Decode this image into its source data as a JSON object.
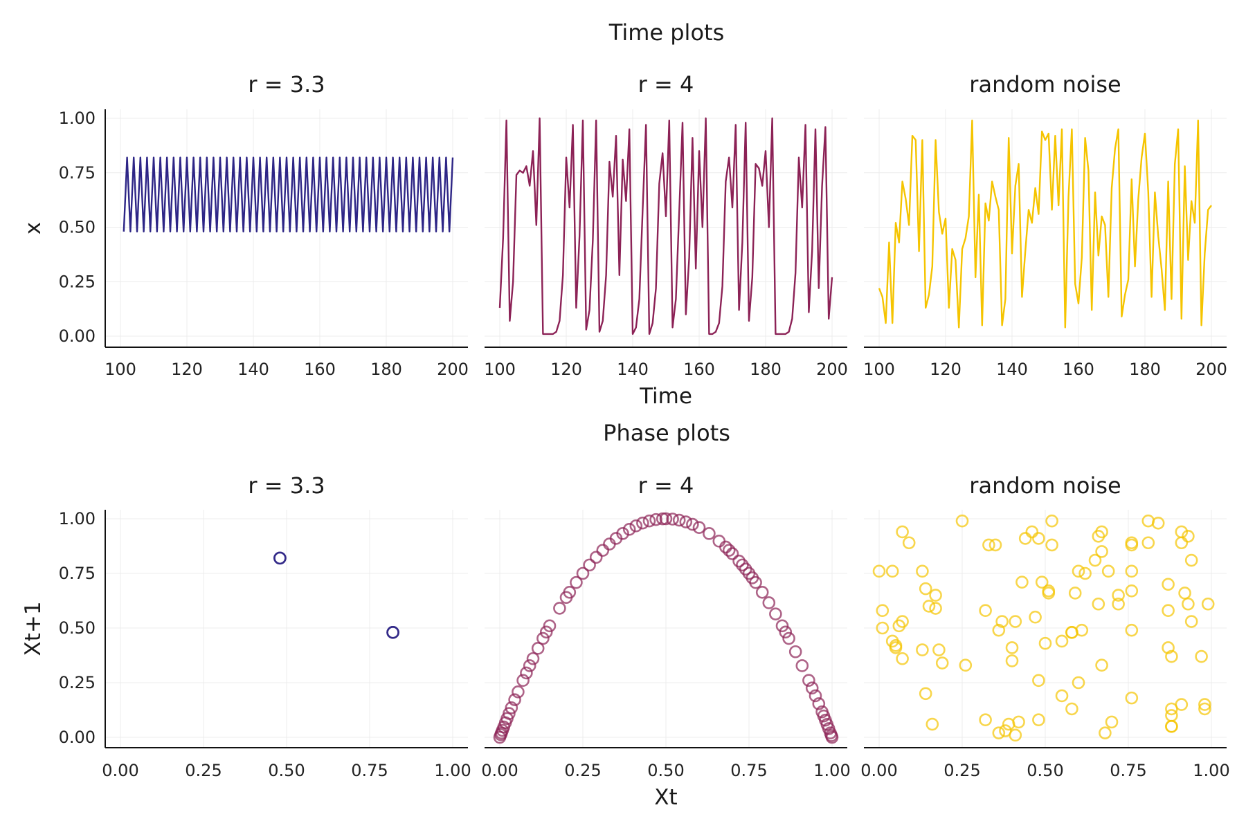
{
  "figure": {
    "time_section_title": "Time plots",
    "phase_section_title": "Phase plots",
    "colors": {
      "r33": "#2d2586",
      "r4": "#8c2256",
      "noise": "#f5c400"
    }
  },
  "chart_data": [
    {
      "type": "line",
      "title": "r = 3.3",
      "xlabel": "",
      "ylabel": "x",
      "xlim": [
        100,
        200
      ],
      "ylim": [
        0,
        1
      ],
      "xticks": [
        "100",
        "120",
        "140",
        "160",
        "180",
        "200"
      ],
      "yticks": [
        "0.00",
        "0.25",
        "0.50",
        "0.75",
        "1.00"
      ],
      "grid": true,
      "color": "#2d2586",
      "series": [
        {
          "x_start": 101,
          "x_step": 1,
          "values": [
            0.48,
            0.82,
            0.48,
            0.82,
            0.48,
            0.82,
            0.48,
            0.82,
            0.48,
            0.82,
            0.48,
            0.82,
            0.48,
            0.82,
            0.48,
            0.82,
            0.48,
            0.82,
            0.48,
            0.82,
            0.48,
            0.82,
            0.48,
            0.82,
            0.48,
            0.82,
            0.48,
            0.82,
            0.48,
            0.82,
            0.48,
            0.82,
            0.48,
            0.82,
            0.48,
            0.82,
            0.48,
            0.82,
            0.48,
            0.82,
            0.48,
            0.82,
            0.48,
            0.82,
            0.48,
            0.82,
            0.48,
            0.82,
            0.48,
            0.82,
            0.48,
            0.82,
            0.48,
            0.82,
            0.48,
            0.82,
            0.48,
            0.82,
            0.48,
            0.82,
            0.48,
            0.82,
            0.48,
            0.82,
            0.48,
            0.82,
            0.48,
            0.82,
            0.48,
            0.82,
            0.48,
            0.82,
            0.48,
            0.82,
            0.48,
            0.82,
            0.48,
            0.82,
            0.48,
            0.82,
            0.48,
            0.82,
            0.48,
            0.82,
            0.48,
            0.82,
            0.48,
            0.82,
            0.48,
            0.82,
            0.48,
            0.82,
            0.48,
            0.82,
            0.48,
            0.82,
            0.48,
            0.82,
            0.48,
            0.82
          ]
        }
      ]
    },
    {
      "type": "line",
      "title": "r = 4",
      "xlabel": "Time",
      "ylabel": "",
      "xlim": [
        100,
        200
      ],
      "ylim": [
        0,
        1
      ],
      "xticks": [
        "100",
        "120",
        "140",
        "160",
        "180",
        "200"
      ],
      "yticks": [],
      "grid": true,
      "color": "#8c2256",
      "series": [
        {
          "x_start": 100,
          "x_step": 1,
          "values": [
            0.13,
            0.45,
            0.99,
            0.07,
            0.25,
            0.74,
            0.76,
            0.75,
            0.78,
            0.69,
            0.85,
            0.51,
            1.0,
            0.01,
            0.01,
            0.01,
            0.01,
            0.02,
            0.07,
            0.28,
            0.82,
            0.59,
            0.97,
            0.13,
            0.46,
            0.99,
            0.03,
            0.12,
            0.44,
            0.99,
            0.02,
            0.07,
            0.28,
            0.8,
            0.64,
            0.92,
            0.28,
            0.81,
            0.62,
            0.95,
            0.01,
            0.04,
            0.17,
            0.58,
            0.97,
            0.01,
            0.06,
            0.22,
            0.7,
            0.84,
            0.55,
            0.99,
            0.04,
            0.17,
            0.57,
            0.98,
            0.1,
            0.36,
            0.91,
            0.31,
            0.85,
            0.5,
            1.0,
            0.01,
            0.01,
            0.02,
            0.06,
            0.23,
            0.71,
            0.82,
            0.59,
            0.97,
            0.12,
            0.43,
            0.98,
            0.07,
            0.27,
            0.79,
            0.77,
            0.69,
            0.85,
            0.5,
            1.0,
            0.01,
            0.01,
            0.01,
            0.01,
            0.02,
            0.08,
            0.29,
            0.82,
            0.59,
            0.97,
            0.11,
            0.39,
            0.95,
            0.22,
            0.69,
            0.96,
            0.08,
            0.27
          ]
        }
      ]
    },
    {
      "type": "line",
      "title": "random noise",
      "xlabel": "",
      "ylabel": "",
      "xlim": [
        100,
        200
      ],
      "ylim": [
        0,
        1
      ],
      "xticks": [
        "100",
        "120",
        "140",
        "160",
        "180",
        "200"
      ],
      "yticks": [],
      "grid": true,
      "color": "#f5c400",
      "series": [
        {
          "x_start": 100,
          "x_step": 1,
          "values": [
            0.22,
            0.18,
            0.06,
            0.43,
            0.06,
            0.52,
            0.43,
            0.71,
            0.63,
            0.51,
            0.92,
            0.9,
            0.39,
            0.9,
            0.13,
            0.19,
            0.32,
            0.9,
            0.57,
            0.47,
            0.54,
            0.13,
            0.4,
            0.35,
            0.04,
            0.4,
            0.45,
            0.55,
            0.99,
            0.27,
            0.65,
            0.05,
            0.61,
            0.53,
            0.71,
            0.64,
            0.58,
            0.05,
            0.17,
            0.91,
            0.38,
            0.69,
            0.79,
            0.18,
            0.39,
            0.58,
            0.52,
            0.68,
            0.56,
            0.94,
            0.9,
            0.93,
            0.58,
            0.92,
            0.6,
            0.95,
            0.04,
            0.64,
            0.95,
            0.24,
            0.15,
            0.36,
            0.91,
            0.76,
            0.12,
            0.66,
            0.37,
            0.55,
            0.51,
            0.18,
            0.68,
            0.86,
            0.95,
            0.09,
            0.19,
            0.26,
            0.72,
            0.32,
            0.63,
            0.82,
            0.93,
            0.66,
            0.18,
            0.66,
            0.46,
            0.31,
            0.12,
            0.71,
            0.17,
            0.79,
            0.95,
            0.08,
            0.78,
            0.35,
            0.62,
            0.52,
            0.99,
            0.05,
            0.38,
            0.58,
            0.6
          ]
        }
      ]
    },
    {
      "type": "scatter",
      "title": "r = 3.3",
      "xlabel": "",
      "ylabel": "Xt+1",
      "xlim": [
        0,
        1
      ],
      "ylim": [
        0,
        1
      ],
      "xticks": [
        "0.00",
        "0.25",
        "0.50",
        "0.75",
        "1.00"
      ],
      "yticks": [
        "0.00",
        "0.25",
        "0.50",
        "0.75",
        "1.00"
      ],
      "grid": true,
      "color": "#2d2586",
      "points": [
        [
          0.48,
          0.82
        ],
        [
          0.48,
          0.82
        ],
        [
          0.48,
          0.82
        ],
        [
          0.82,
          0.48
        ],
        [
          0.82,
          0.48
        ],
        [
          0.82,
          0.48
        ]
      ]
    },
    {
      "type": "scatter",
      "title": "r = 4",
      "xlabel": "Xt",
      "ylabel": "",
      "xlim": [
        0,
        1
      ],
      "ylim": [
        0,
        1
      ],
      "xticks": [
        "0.00",
        "0.25",
        "0.50",
        "0.75",
        "1.00"
      ],
      "yticks": [],
      "grid": true,
      "color": "#8c2256",
      "x_values": [
        0.0,
        0.003,
        0.005,
        0.008,
        0.012,
        0.017,
        0.022,
        0.028,
        0.035,
        0.045,
        0.055,
        0.07,
        0.08,
        0.09,
        0.1,
        0.115,
        0.13,
        0.14,
        0.15,
        0.18,
        0.2,
        0.21,
        0.23,
        0.25,
        0.27,
        0.29,
        0.31,
        0.33,
        0.35,
        0.37,
        0.39,
        0.41,
        0.43,
        0.45,
        0.47,
        0.49,
        0.5,
        0.52,
        0.54,
        0.56,
        0.58,
        0.6,
        0.63,
        0.66,
        0.68,
        0.69,
        0.7,
        0.72,
        0.73,
        0.74,
        0.75,
        0.76,
        0.77,
        0.79,
        0.81,
        0.83,
        0.85,
        0.86,
        0.87,
        0.89,
        0.91,
        0.93,
        0.94,
        0.95,
        0.96,
        0.97,
        0.975,
        0.98,
        0.985,
        0.99,
        0.995,
        0.998,
        1.0
      ]
    },
    {
      "type": "scatter",
      "title": "random noise",
      "xlabel": "",
      "ylabel": "",
      "xlim": [
        0,
        1
      ],
      "ylim": [
        0,
        1
      ],
      "xticks": [
        "0.00",
        "0.25",
        "0.50",
        "0.75",
        "1.00"
      ],
      "yticks": [],
      "grid": true,
      "color": "#f5c400",
      "points": [
        [
          0.0,
          0.76
        ],
        [
          0.01,
          0.58
        ],
        [
          0.01,
          0.5
        ],
        [
          0.04,
          0.76
        ],
        [
          0.04,
          0.44
        ],
        [
          0.05,
          0.41
        ],
        [
          0.05,
          0.42
        ],
        [
          0.06,
          0.51
        ],
        [
          0.07,
          0.53
        ],
        [
          0.07,
          0.94
        ],
        [
          0.07,
          0.36
        ],
        [
          0.09,
          0.89
        ],
        [
          0.13,
          0.4
        ],
        [
          0.13,
          0.76
        ],
        [
          0.14,
          0.2
        ],
        [
          0.14,
          0.68
        ],
        [
          0.15,
          0.6
        ],
        [
          0.16,
          0.06
        ],
        [
          0.17,
          0.65
        ],
        [
          0.17,
          0.59
        ],
        [
          0.18,
          0.4
        ],
        [
          0.19,
          0.34
        ],
        [
          0.25,
          0.99
        ],
        [
          0.26,
          0.33
        ],
        [
          0.32,
          0.58
        ],
        [
          0.32,
          0.08
        ],
        [
          0.33,
          0.88
        ],
        [
          0.35,
          0.88
        ],
        [
          0.36,
          0.02
        ],
        [
          0.36,
          0.49
        ],
        [
          0.37,
          0.53
        ],
        [
          0.38,
          0.03
        ],
        [
          0.39,
          0.06
        ],
        [
          0.4,
          0.41
        ],
        [
          0.4,
          0.35
        ],
        [
          0.41,
          0.53
        ],
        [
          0.41,
          0.01
        ],
        [
          0.42,
          0.07
        ],
        [
          0.43,
          0.71
        ],
        [
          0.44,
          0.91
        ],
        [
          0.46,
          0.94
        ],
        [
          0.47,
          0.55
        ],
        [
          0.48,
          0.91
        ],
        [
          0.48,
          0.26
        ],
        [
          0.48,
          0.08
        ],
        [
          0.49,
          0.71
        ],
        [
          0.5,
          0.43
        ],
        [
          0.51,
          0.67
        ],
        [
          0.51,
          0.66
        ],
        [
          0.52,
          0.99
        ],
        [
          0.52,
          0.88
        ],
        [
          0.55,
          0.19
        ],
        [
          0.55,
          0.44
        ],
        [
          0.58,
          0.48
        ],
        [
          0.58,
          0.48
        ],
        [
          0.58,
          0.13
        ],
        [
          0.59,
          0.66
        ],
        [
          0.6,
          0.25
        ],
        [
          0.6,
          0.76
        ],
        [
          0.61,
          0.49
        ],
        [
          0.62,
          0.75
        ],
        [
          0.65,
          0.81
        ],
        [
          0.66,
          0.61
        ],
        [
          0.66,
          0.92
        ],
        [
          0.67,
          0.33
        ],
        [
          0.67,
          0.94
        ],
        [
          0.67,
          0.85
        ],
        [
          0.68,
          0.02
        ],
        [
          0.69,
          0.76
        ],
        [
          0.7,
          0.07
        ],
        [
          0.72,
          0.61
        ],
        [
          0.72,
          0.65
        ],
        [
          0.76,
          0.76
        ],
        [
          0.76,
          0.89
        ],
        [
          0.76,
          0.88
        ],
        [
          0.76,
          0.67
        ],
        [
          0.76,
          0.49
        ],
        [
          0.76,
          0.18
        ],
        [
          0.81,
          0.89
        ],
        [
          0.81,
          0.99
        ],
        [
          0.84,
          0.98
        ],
        [
          0.87,
          0.41
        ],
        [
          0.87,
          0.58
        ],
        [
          0.87,
          0.7
        ],
        [
          0.88,
          0.05
        ],
        [
          0.88,
          0.37
        ],
        [
          0.88,
          0.1
        ],
        [
          0.88,
          0.13
        ],
        [
          0.88,
          0.05
        ],
        [
          0.91,
          0.89
        ],
        [
          0.91,
          0.94
        ],
        [
          0.91,
          0.15
        ],
        [
          0.92,
          0.66
        ],
        [
          0.93,
          0.92
        ],
        [
          0.93,
          0.61
        ],
        [
          0.94,
          0.81
        ],
        [
          0.94,
          0.53
        ],
        [
          0.97,
          0.37
        ],
        [
          0.98,
          0.15
        ],
        [
          0.98,
          0.13
        ],
        [
          0.99,
          0.61
        ]
      ]
    }
  ]
}
